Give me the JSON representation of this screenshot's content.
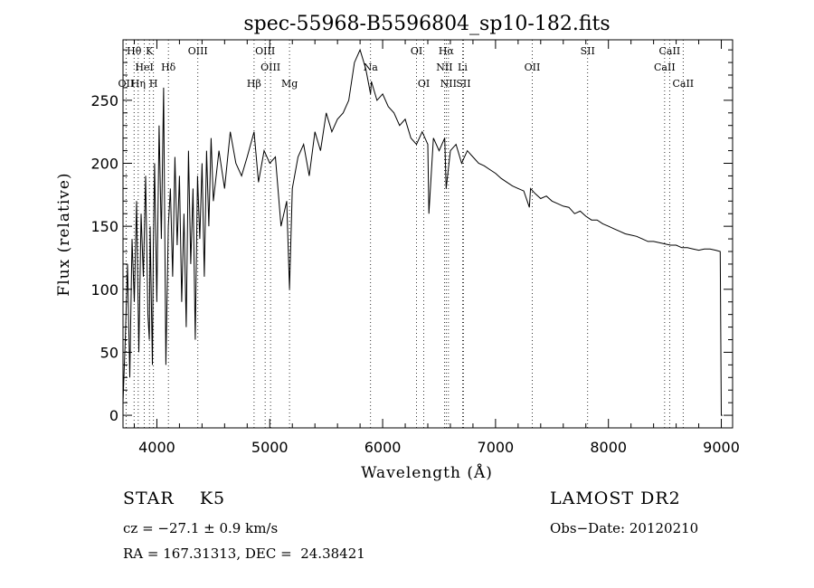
{
  "chart_data": {
    "type": "line",
    "title": "spec-55968-B5596804_sp10-182.fits",
    "xlabel": "Wavelength (Å)",
    "ylabel": "Flux (relative)",
    "xlim": [
      3700,
      9100
    ],
    "ylim": [
      -10,
      298
    ],
    "x_ticks": [
      4000,
      5000,
      6000,
      7000,
      8000,
      9000
    ],
    "y_ticks": [
      0,
      50,
      100,
      150,
      200,
      250
    ],
    "grid": false,
    "series": [
      {
        "x": [
          3700,
          3720,
          3740,
          3760,
          3780,
          3800,
          3820,
          3840,
          3860,
          3880,
          3900,
          3920,
          3933,
          3940,
          3960,
          3968,
          3980,
          4000,
          4020,
          4040,
          4060,
          4080,
          4101,
          4120,
          4140,
          4160,
          4180,
          4200,
          4220,
          4240,
          4260,
          4280,
          4300,
          4320,
          4340,
          4360,
          4380,
          4400,
          4420,
          4440,
          4460,
          4480,
          4500,
          4550,
          4600,
          4650,
          4700,
          4750,
          4800,
          4861,
          4900,
          4950,
          5000,
          5050,
          5100,
          5150,
          5175,
          5200,
          5250,
          5300,
          5350,
          5400,
          5450,
          5500,
          5550,
          5600,
          5650,
          5700,
          5750,
          5800,
          5850,
          5893,
          5900,
          5950,
          6000,
          6050,
          6100,
          6150,
          6200,
          6250,
          6300,
          6350,
          6400,
          6410,
          6450,
          6500,
          6550,
          6563,
          6600,
          6650,
          6700,
          6750,
          6800,
          6850,
          6900,
          6950,
          7000,
          7050,
          7100,
          7150,
          7200,
          7250,
          7300,
          7310,
          7350,
          7400,
          7450,
          7500,
          7550,
          7600,
          7650,
          7700,
          7750,
          7800,
          7850,
          7900,
          7950,
          8000,
          8050,
          8100,
          8150,
          8200,
          8250,
          8300,
          8350,
          8400,
          8450,
          8500,
          8550,
          8600,
          8650,
          8700,
          8750,
          8800,
          8850,
          8900,
          8950,
          8990,
          9000,
          9010
        ],
        "y": [
          10,
          60,
          120,
          30,
          140,
          90,
          170,
          50,
          160,
          110,
          190,
          80,
          60,
          150,
          40,
          130,
          200,
          90,
          230,
          140,
          260,
          40,
          150,
          180,
          110,
          205,
          135,
          190,
          90,
          160,
          70,
          210,
          120,
          180,
          60,
          190,
          140,
          200,
          110,
          210,
          150,
          220,
          170,
          210,
          180,
          225,
          200,
          190,
          205,
          225,
          185,
          210,
          200,
          205,
          150,
          170,
          100,
          180,
          205,
          215,
          190,
          225,
          210,
          240,
          225,
          235,
          240,
          250,
          280,
          290,
          275,
          255,
          265,
          250,
          255,
          245,
          240,
          230,
          235,
          220,
          215,
          225,
          215,
          160,
          220,
          210,
          220,
          180,
          210,
          215,
          200,
          210,
          205,
          200,
          198,
          195,
          192,
          188,
          185,
          182,
          180,
          178,
          165,
          180,
          176,
          172,
          174,
          170,
          168,
          166,
          165,
          160,
          162,
          158,
          155,
          155,
          152,
          150,
          148,
          146,
          144,
          143,
          142,
          140,
          138,
          138,
          137,
          136,
          135,
          135,
          133,
          133,
          132,
          131,
          132,
          132,
          131,
          130,
          0,
          0
        ]
      }
    ],
    "line_markers": [
      {
        "label": "Hθ",
        "x": 3798,
        "row": 0
      },
      {
        "label": "K",
        "x": 3934,
        "row": 0
      },
      {
        "label": "OIII",
        "x": 4363,
        "row": 0
      },
      {
        "label": "OIII",
        "x": 4959,
        "row": 0
      },
      {
        "label": "OI",
        "x": 6300,
        "row": 0
      },
      {
        "label": "Hα",
        "x": 6563,
        "row": 0
      },
      {
        "label": "SII",
        "x": 7816,
        "row": 0
      },
      {
        "label": "CaII",
        "x": 8542,
        "row": 0
      },
      {
        "label": "HeI",
        "x": 3889,
        "row": 1
      },
      {
        "label": "Hδ",
        "x": 4102,
        "row": 1
      },
      {
        "label": "OIII",
        "x": 5007,
        "row": 1
      },
      {
        "label": "Na",
        "x": 5893,
        "row": 1
      },
      {
        "label": "NII",
        "x": 6548,
        "row": 1
      },
      {
        "label": "Li",
        "x": 6708,
        "row": 1
      },
      {
        "label": "OII",
        "x": 7325,
        "row": 1
      },
      {
        "label": "CaII",
        "x": 8498,
        "row": 1
      },
      {
        "label": "OII",
        "x": 3727,
        "row": 2
      },
      {
        "label": "Hη",
        "x": 3835,
        "row": 2
      },
      {
        "label": "H",
        "x": 3970,
        "row": 2
      },
      {
        "label": "Hβ",
        "x": 4861,
        "row": 2
      },
      {
        "label": "Mg",
        "x": 5175,
        "row": 2
      },
      {
        "label": "OI",
        "x": 6364,
        "row": 2
      },
      {
        "label": "NII",
        "x": 6583,
        "row": 2
      },
      {
        "label": "SII",
        "x": 6716,
        "row": 2
      },
      {
        "label": "CaII",
        "x": 8662,
        "row": 2
      }
    ]
  },
  "footer": {
    "object_class": "STAR    K5",
    "redshift": "cz = −27.1 ± 0.9 km/s",
    "coordinates": "RA = 167.31313, DEC =  24.38421",
    "survey": "LAMOST DR2",
    "obs_date": "Obs−Date: 20120210"
  },
  "colors": {
    "foreground": "#000000",
    "background": "#ffffff"
  }
}
